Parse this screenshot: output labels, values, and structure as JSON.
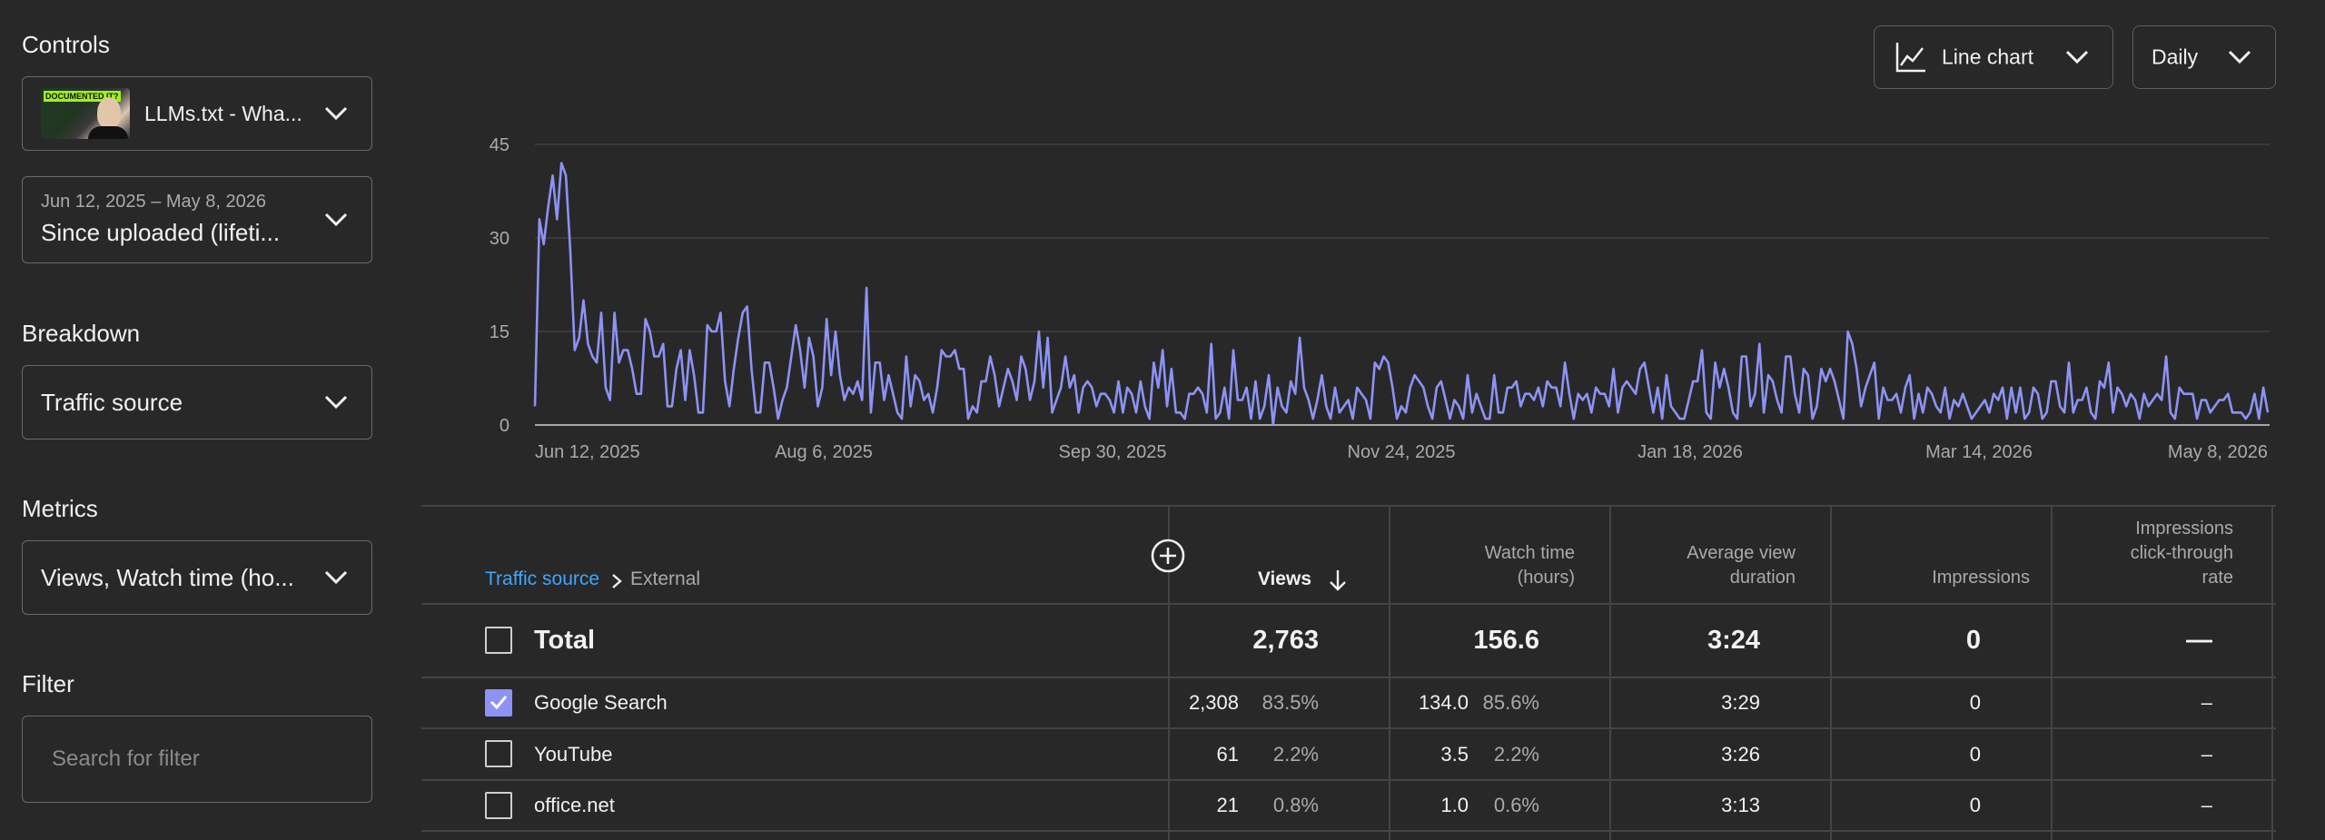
{
  "sidebar": {
    "controls_title": "Controls",
    "video": {
      "title": "LLMs.txt - Wha...",
      "thumb_badge": "DOCUMENTED IT?"
    },
    "date_range": {
      "range": "Jun 12, 2025 – May 8, 2026",
      "label": "Since uploaded (lifeti..."
    },
    "breakdown_title": "Breakdown",
    "breakdown_value": "Traffic source",
    "metrics_title": "Metrics",
    "metrics_value": "Views, Watch time (ho...",
    "filter_title": "Filter",
    "filter_placeholder": "Search for filter"
  },
  "toolbar": {
    "chart_type_label": "Line chart",
    "interval_label": "Daily"
  },
  "chart_data": {
    "type": "line",
    "title": "",
    "xlabel": "",
    "ylabel": "",
    "ylim": [
      0,
      45
    ],
    "yticks": [
      "0",
      "15",
      "30",
      "45"
    ],
    "x_start": "Jun 12, 2025",
    "x_end": "May 8, 2026",
    "xticks": [
      "Jun 12, 2025",
      "Aug 6, 2025",
      "Sep 30, 2025",
      "Nov 24, 2025",
      "Jan 18, 2026",
      "Mar 14, 2026",
      "May 8, 2026"
    ],
    "color": "#8c93f5",
    "grid": true,
    "values": [
      3,
      33,
      29,
      35,
      40,
      33,
      42,
      40,
      28,
      12,
      14,
      20,
      13,
      11,
      10,
      18,
      6,
      4,
      18,
      10,
      12,
      12,
      9,
      5,
      5,
      17,
      15,
      11,
      11,
      13,
      3,
      3,
      9,
      12,
      4,
      12,
      8,
      2,
      2,
      16,
      15,
      15,
      18,
      7,
      3,
      9,
      14,
      18,
      19,
      9,
      2,
      2,
      10,
      10,
      6,
      1,
      4,
      6,
      11,
      16,
      12,
      6,
      14,
      11,
      3,
      6,
      17,
      8,
      15,
      8,
      4,
      6,
      5,
      7,
      4,
      22,
      2,
      10,
      10,
      4,
      8,
      5,
      2,
      1,
      11,
      3,
      8,
      7,
      4,
      5,
      2,
      6,
      12,
      11,
      11,
      12,
      9,
      9,
      1,
      3,
      2,
      7,
      7,
      11,
      8,
      3,
      6,
      9,
      7,
      4,
      11,
      9,
      4,
      7,
      15,
      6,
      14,
      2,
      4,
      6,
      11,
      6,
      8,
      2,
      6,
      7,
      6,
      3,
      5,
      5,
      4,
      2,
      7,
      2,
      6,
      5,
      2,
      7,
      3,
      1,
      10,
      6,
      12,
      3,
      9,
      2,
      2,
      1,
      5,
      5,
      6,
      5,
      2,
      13,
      1,
      2,
      6,
      1,
      12,
      4,
      4,
      6,
      1,
      7,
      1,
      3,
      8,
      0,
      6,
      3,
      2,
      7,
      5,
      14,
      6,
      4,
      1,
      4,
      8,
      3,
      1,
      6,
      2,
      3,
      4,
      1,
      6,
      5,
      4,
      1,
      10,
      9,
      11,
      10,
      6,
      1,
      3,
      2,
      6,
      8,
      7,
      6,
      3,
      1,
      6,
      7,
      4,
      1,
      4,
      3,
      1,
      8,
      2,
      5,
      3,
      1,
      1,
      8,
      2,
      2,
      6,
      6,
      7,
      3,
      5,
      5,
      4,
      6,
      3,
      7,
      6,
      6,
      3,
      10,
      5,
      1,
      5,
      4,
      5,
      2,
      6,
      5,
      5,
      3,
      9,
      2,
      6,
      7,
      6,
      5,
      9,
      10,
      6,
      2,
      6,
      1,
      8,
      3,
      2,
      1,
      1,
      4,
      7,
      7,
      12,
      2,
      1,
      10,
      6,
      9,
      6,
      2,
      1,
      11,
      11,
      3,
      5,
      13,
      2,
      8,
      7,
      4,
      2,
      11,
      11,
      5,
      2,
      9,
      8,
      1,
      3,
      9,
      7,
      9,
      7,
      4,
      1,
      15,
      13,
      9,
      3,
      6,
      8,
      10,
      1,
      6,
      4,
      4,
      5,
      2,
      6,
      8,
      1,
      5,
      2,
      6,
      5,
      3,
      2,
      6,
      1,
      4,
      3,
      5,
      3,
      1,
      2,
      3,
      4,
      2,
      5,
      4,
      6,
      1,
      6,
      2,
      6,
      1,
      2,
      6,
      5,
      1,
      2,
      7,
      7,
      3,
      2,
      10,
      2,
      4,
      4,
      6,
      2,
      1,
      7,
      6,
      10,
      2,
      6,
      5,
      3,
      5,
      4,
      1,
      5,
      3,
      4,
      5,
      4,
      11,
      2,
      1,
      6,
      5,
      5,
      5,
      1,
      4,
      4,
      2,
      3,
      4,
      4,
      5,
      2,
      2,
      2,
      1,
      2,
      5,
      1,
      6,
      2
    ]
  },
  "table": {
    "crumb_link": "Traffic source",
    "crumb_current": "External",
    "headers": {
      "views": "Views",
      "watch_time_1": "Watch time",
      "watch_time_2": "(hours)",
      "avd_1": "Average view",
      "avd_2": "duration",
      "impressions": "Impressions",
      "ctr_1": "Impressions",
      "ctr_2": "click-through",
      "ctr_3": "rate"
    },
    "total": {
      "label": "Total",
      "views": "2,763",
      "watch": "156.6",
      "avd": "3:24",
      "impressions": "0",
      "ctr": "—"
    },
    "rows": [
      {
        "label": "Google Search",
        "views": "2,308",
        "views_pct": "83.5%",
        "watch": "134.0",
        "watch_pct": "85.6%",
        "avd": "3:29",
        "impressions": "0",
        "ctr": "–",
        "checked": true
      },
      {
        "label": "YouTube",
        "views": "61",
        "views_pct": "2.2%",
        "watch": "3.5",
        "watch_pct": "2.2%",
        "avd": "3:26",
        "impressions": "0",
        "ctr": "–",
        "checked": false
      },
      {
        "label": "office.net",
        "views": "21",
        "views_pct": "0.8%",
        "watch": "1.0",
        "watch_pct": "0.6%",
        "avd": "3:13",
        "impressions": "0",
        "ctr": "–",
        "checked": false
      }
    ]
  }
}
